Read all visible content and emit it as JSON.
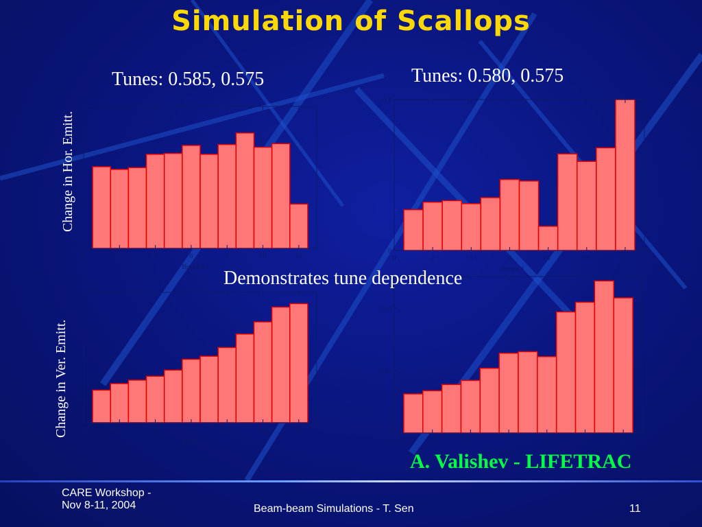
{
  "slide": {
    "title": "Simulation of Scallops",
    "tune_left": "Tunes: 0.585, 0.575",
    "tune_right": "Tunes: 0.580, 0.575",
    "hor_label": "Change in Hor. Emitt.",
    "ver_label": "Change in Ver. Emitt.",
    "center_note": "Demonstrates tune dependence",
    "credit": "A. Valishev - LIFETRAC",
    "footer_left_1": "CARE Workshop -",
    "footer_left_2": "Nov 8-11, 2004",
    "footer_center": "Beam-beam Simulations - T. Sen",
    "footer_page": "11"
  },
  "colors": {
    "title": "#ffd800",
    "bar_fill": "#ff7777",
    "bar_stroke": "#e00000",
    "credit": "#00ff44",
    "background": "#0a1680"
  },
  "chart_data": [
    {
      "type": "bar",
      "panel": "top-left",
      "x": [
        1,
        2,
        3,
        4,
        5,
        6,
        7,
        8,
        9,
        10,
        11,
        12
      ],
      "values": [
        0.092,
        0.089,
        0.091,
        0.106,
        0.107,
        0.116,
        0.106,
        0.117,
        0.13,
        0.114,
        0.118,
        0.05
      ],
      "xlabel": "Bunch #",
      "ylabel": "",
      "xticks": [
        "0",
        "2",
        "4",
        "6",
        "8",
        "10",
        "12"
      ],
      "yticks": [],
      "ylim": [
        0,
        0.16
      ]
    },
    {
      "type": "bar",
      "panel": "top-right",
      "x": [
        1,
        2,
        3,
        4,
        5,
        6,
        7,
        8,
        9,
        10,
        11,
        12
      ],
      "values": [
        0.027,
        0.032,
        0.033,
        0.031,
        0.035,
        0.047,
        0.046,
        0.016,
        0.064,
        0.059,
        0.068,
        0.1
      ],
      "xlabel": "Bunch #",
      "ylabel": "",
      "xticks": [
        "0",
        "2",
        "4",
        "6",
        "8",
        "10",
        "12"
      ],
      "yticks": [
        "0",
        "0.1",
        "0.2"
      ],
      "ylim": [
        0,
        0.1
      ]
    },
    {
      "type": "bar",
      "panel": "bottom-left",
      "x": [
        1,
        2,
        3,
        4,
        5,
        6,
        7,
        8,
        9,
        10,
        11,
        12
      ],
      "values": [
        0.075,
        0.09,
        0.098,
        0.107,
        0.121,
        0.146,
        0.153,
        0.173,
        0.204,
        0.232,
        0.266,
        0.274
      ],
      "xlabel": "Bunch #",
      "ylabel": "",
      "xticks": [
        "0",
        "2",
        "4",
        "6",
        "8",
        "10",
        "12"
      ],
      "yticks": [
        "0.3"
      ],
      "ylim": [
        0,
        0.3
      ]
    },
    {
      "type": "bar",
      "panel": "bottom-right",
      "x": [
        1,
        2,
        3,
        4,
        5,
        6,
        7,
        8,
        9,
        10,
        11,
        12
      ],
      "values": [
        0.0125,
        0.0135,
        0.0155,
        0.0168,
        0.0207,
        0.0255,
        0.026,
        0.0244,
        0.0387,
        0.0418,
        0.0486,
        0.0432
      ],
      "xlabel": "Bunch #",
      "ylabel": "",
      "xticks": [
        "0",
        "2",
        "4",
        "6",
        "8",
        "10",
        "12"
      ],
      "yticks": [
        "0",
        "0.02",
        "0.04"
      ],
      "ylim": [
        0,
        0.05
      ]
    }
  ]
}
